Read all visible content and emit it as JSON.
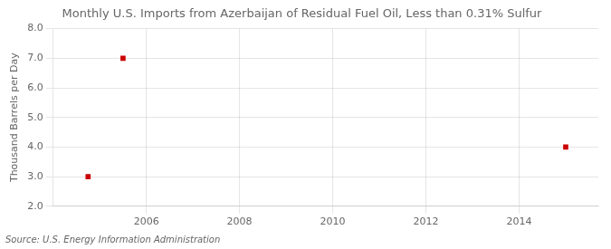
{
  "chart_data": {
    "type": "scatter",
    "title": "Monthly U.S. Imports from Azerbaijan of Residual Fuel Oil, Less than 0.31% Sulfur",
    "ylabel": "Thousand Barrels per Day",
    "annotations": [
      "Source: U.S. Energy Information Administration"
    ],
    "x": [
      2004.75,
      2005.5,
      2015.0
    ],
    "values": [
      3.0,
      7.0,
      4.0
    ],
    "color": "#cc0000",
    "marker": "square",
    "xlim": [
      2004.0,
      2015.7
    ],
    "ylim": [
      2.0,
      8.0
    ],
    "xticks": [
      2006,
      2008,
      2010,
      2012,
      2014
    ],
    "yticks": [
      {
        "value": 2.0,
        "label": "2.0"
      },
      {
        "value": 3.0,
        "label": "3.0"
      },
      {
        "value": 4.0,
        "label": "4.0"
      },
      {
        "value": 5.0,
        "label": "5.0"
      },
      {
        "value": 6.0,
        "label": "6.0"
      },
      {
        "value": 7.0,
        "label": "7.0"
      },
      {
        "value": 8.0,
        "label": "8.0"
      }
    ],
    "grid": true
  }
}
